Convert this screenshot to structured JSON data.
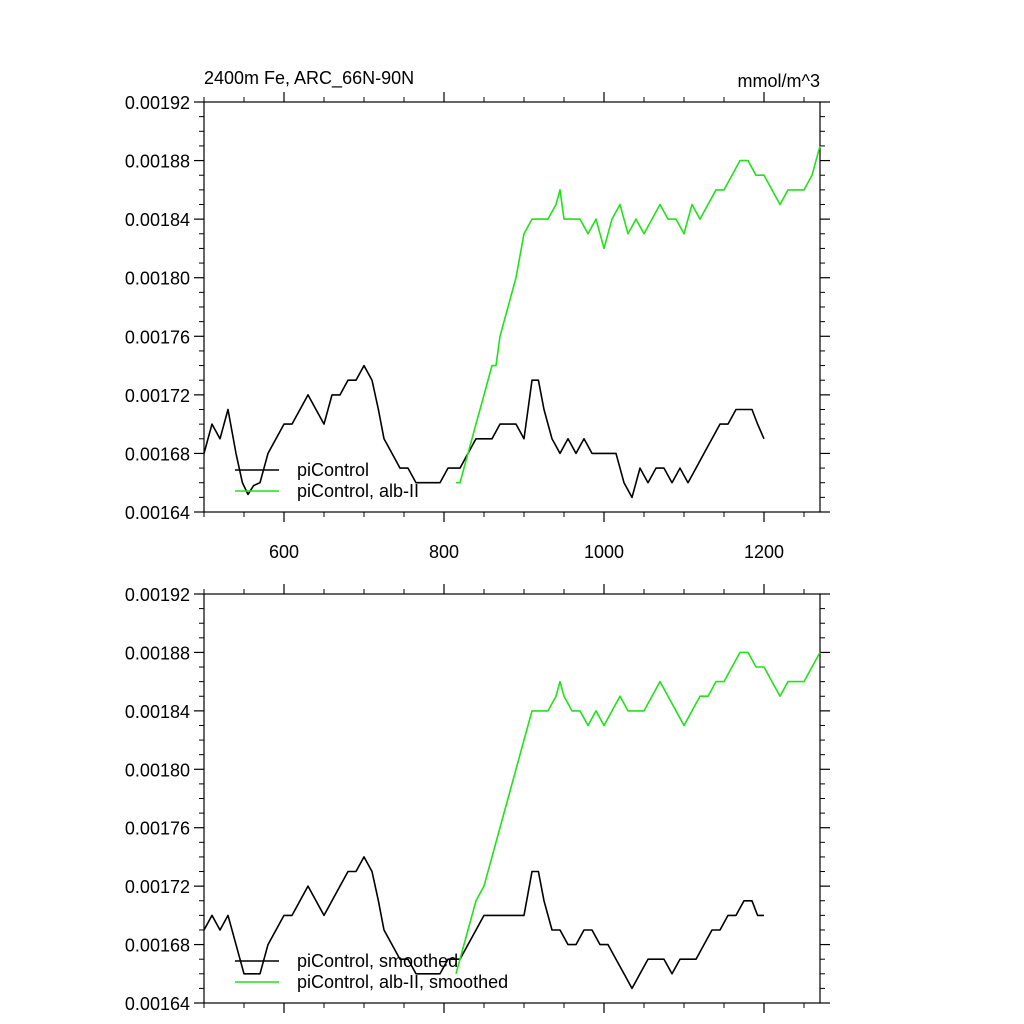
{
  "header": {
    "title": "2400m Fe, ARC_66N-90N",
    "units": "mmol/m^3"
  },
  "colors": {
    "piControl": "#000000",
    "alb_II": "#22e11a",
    "axis": "#000000"
  },
  "chart_data": [
    {
      "type": "line",
      "title": "2400m Fe, ARC_66N-90N",
      "units_label": "mmol/m^3",
      "xlim": [
        500,
        1270
      ],
      "ylim": [
        0.00164,
        0.00192
      ],
      "x_ticks": [
        600,
        800,
        1000,
        1200
      ],
      "y_ticks": [
        "0.00164",
        "0.00168",
        "0.00172",
        "0.00176",
        "0.00180",
        "0.00184",
        "0.00188",
        "0.00192"
      ],
      "show_x_tick_labels": true,
      "grid": false,
      "legend_position": "bottom-left",
      "series": [
        {
          "name": "piControl",
          "color": "#000000",
          "x": [
            500,
            510,
            520,
            530,
            540,
            548,
            555,
            562,
            570,
            580,
            590,
            600,
            610,
            620,
            630,
            640,
            650,
            660,
            670,
            680,
            690,
            700,
            710,
            718,
            725,
            735,
            745,
            755,
            765,
            775,
            785,
            795,
            805,
            812,
            820,
            830,
            840,
            850,
            860,
            870,
            880,
            890,
            900,
            910,
            918,
            925,
            935,
            945,
            955,
            965,
            975,
            985,
            995,
            1005,
            1015,
            1025,
            1035,
            1045,
            1055,
            1065,
            1075,
            1085,
            1095,
            1105,
            1115,
            1125,
            1135,
            1145,
            1155,
            1165,
            1175,
            1185,
            1192,
            1200
          ],
          "y": [
            0.00168,
            0.0017,
            0.00169,
            0.00171,
            0.00168,
            0.00166,
            0.001652,
            0.001658,
            0.00166,
            0.00168,
            0.00169,
            0.0017,
            0.0017,
            0.00171,
            0.00172,
            0.00171,
            0.0017,
            0.00172,
            0.00172,
            0.00173,
            0.00173,
            0.00174,
            0.00173,
            0.00171,
            0.00169,
            0.00168,
            0.00167,
            0.00167,
            0.00166,
            0.00166,
            0.00166,
            0.00166,
            0.00167,
            0.00167,
            0.00167,
            0.00168,
            0.00169,
            0.00169,
            0.00169,
            0.0017,
            0.0017,
            0.0017,
            0.00169,
            0.00173,
            0.00173,
            0.00171,
            0.00169,
            0.00168,
            0.00169,
            0.00168,
            0.00169,
            0.00168,
            0.00168,
            0.00168,
            0.00168,
            0.00166,
            0.00165,
            0.00167,
            0.00166,
            0.00167,
            0.00167,
            0.00166,
            0.00167,
            0.00166,
            0.00167,
            0.00168,
            0.00169,
            0.0017,
            0.0017,
            0.00171,
            0.00171,
            0.00171,
            0.0017,
            0.00169
          ]
        },
        {
          "name": "piControl, alb-II",
          "color": "#22e11a",
          "x": [
            815,
            820,
            830,
            840,
            850,
            860,
            865,
            870,
            880,
            890,
            900,
            910,
            920,
            930,
            940,
            945,
            950,
            960,
            970,
            980,
            990,
            1000,
            1010,
            1020,
            1030,
            1040,
            1050,
            1060,
            1070,
            1080,
            1090,
            1100,
            1110,
            1120,
            1130,
            1140,
            1150,
            1160,
            1170,
            1180,
            1190,
            1200,
            1210,
            1220,
            1230,
            1240,
            1250,
            1260,
            1270
          ],
          "y": [
            0.00166,
            0.00166,
            0.00168,
            0.0017,
            0.00172,
            0.00174,
            0.00174,
            0.00176,
            0.00178,
            0.0018,
            0.00183,
            0.00184,
            0.00184,
            0.00184,
            0.00185,
            0.00186,
            0.00184,
            0.00184,
            0.00184,
            0.00183,
            0.00184,
            0.00182,
            0.00184,
            0.00185,
            0.00183,
            0.00184,
            0.00183,
            0.00184,
            0.00185,
            0.00184,
            0.00184,
            0.00183,
            0.00185,
            0.00184,
            0.00185,
            0.00186,
            0.00186,
            0.00187,
            0.00188,
            0.00188,
            0.00187,
            0.00187,
            0.00186,
            0.00185,
            0.00186,
            0.00186,
            0.00186,
            0.00187,
            0.00189
          ]
        }
      ]
    },
    {
      "type": "line",
      "xlim": [
        500,
        1270
      ],
      "ylim": [
        0.00164,
        0.00192
      ],
      "x_ticks": [
        600,
        800,
        1000,
        1200
      ],
      "y_ticks": [
        "0.00164",
        "0.00168",
        "0.00172",
        "0.00176",
        "0.00180",
        "0.00184",
        "0.00188",
        "0.00192"
      ],
      "show_x_tick_labels": false,
      "grid": false,
      "legend_position": "bottom-left",
      "series": [
        {
          "name": "piControl, smoothed",
          "color": "#000000",
          "x": [
            500,
            510,
            520,
            530,
            540,
            550,
            555,
            560,
            570,
            580,
            590,
            600,
            610,
            620,
            630,
            640,
            650,
            660,
            670,
            680,
            690,
            700,
            710,
            718,
            725,
            735,
            745,
            755,
            765,
            775,
            785,
            795,
            805,
            812,
            820,
            830,
            840,
            850,
            860,
            870,
            880,
            890,
            900,
            910,
            918,
            925,
            935,
            945,
            955,
            965,
            975,
            985,
            995,
            1005,
            1015,
            1025,
            1035,
            1045,
            1055,
            1065,
            1075,
            1085,
            1095,
            1105,
            1115,
            1125,
            1135,
            1145,
            1155,
            1165,
            1175,
            1185,
            1192,
            1200
          ],
          "y": [
            0.00169,
            0.0017,
            0.00169,
            0.0017,
            0.00168,
            0.00166,
            0.00166,
            0.00166,
            0.00166,
            0.00168,
            0.00169,
            0.0017,
            0.0017,
            0.00171,
            0.00172,
            0.00171,
            0.0017,
            0.00171,
            0.00172,
            0.00173,
            0.00173,
            0.00174,
            0.00173,
            0.00171,
            0.00169,
            0.00168,
            0.00167,
            0.00167,
            0.00166,
            0.00166,
            0.00166,
            0.00166,
            0.00167,
            0.00167,
            0.00167,
            0.00168,
            0.00169,
            0.0017,
            0.0017,
            0.0017,
            0.0017,
            0.0017,
            0.0017,
            0.00173,
            0.00173,
            0.00171,
            0.00169,
            0.00169,
            0.00168,
            0.00168,
            0.00169,
            0.00169,
            0.00168,
            0.00168,
            0.00167,
            0.00166,
            0.00165,
            0.00166,
            0.00167,
            0.00167,
            0.00167,
            0.00166,
            0.00167,
            0.00167,
            0.00167,
            0.00168,
            0.00169,
            0.00169,
            0.0017,
            0.0017,
            0.00171,
            0.00171,
            0.0017,
            0.0017
          ]
        },
        {
          "name": "piControl, alb-II, smoothed",
          "color": "#22e11a",
          "x": [
            815,
            820,
            830,
            840,
            850,
            860,
            870,
            880,
            890,
            900,
            910,
            920,
            930,
            940,
            945,
            950,
            960,
            970,
            980,
            990,
            1000,
            1010,
            1020,
            1030,
            1040,
            1050,
            1060,
            1070,
            1080,
            1090,
            1100,
            1110,
            1120,
            1130,
            1140,
            1150,
            1160,
            1170,
            1180,
            1190,
            1200,
            1210,
            1220,
            1230,
            1240,
            1250,
            1260,
            1270
          ],
          "y": [
            0.00166,
            0.00167,
            0.00169,
            0.00171,
            0.00172,
            0.00174,
            0.00176,
            0.00178,
            0.0018,
            0.00182,
            0.00184,
            0.00184,
            0.00184,
            0.00185,
            0.00186,
            0.00185,
            0.00184,
            0.00184,
            0.00183,
            0.00184,
            0.00183,
            0.00184,
            0.00185,
            0.00184,
            0.00184,
            0.00184,
            0.00185,
            0.00186,
            0.00185,
            0.00184,
            0.00183,
            0.00184,
            0.00185,
            0.00185,
            0.00186,
            0.00186,
            0.00187,
            0.00188,
            0.00188,
            0.00187,
            0.00187,
            0.00186,
            0.00185,
            0.00186,
            0.00186,
            0.00186,
            0.00187,
            0.00188
          ]
        }
      ]
    }
  ]
}
